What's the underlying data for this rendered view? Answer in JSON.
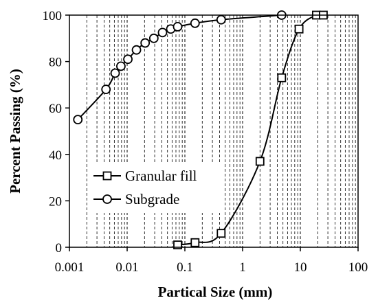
{
  "chart_data": {
    "type": "scatter",
    "xlabel": "Partical Size (mm)",
    "ylabel": "Percent Passing (%)",
    "x_scale": "log",
    "xlim": [
      0.001,
      100
    ],
    "ylim": [
      0,
      100
    ],
    "x_ticks": [
      "0.001",
      "0.01",
      "0.1",
      "1",
      "10",
      "100"
    ],
    "y_ticks": [
      "0",
      "20",
      "40",
      "60",
      "80",
      "100"
    ],
    "grid": "vertical dashed minor lines",
    "legend_position": "bottom-left",
    "series": [
      {
        "name": "Granular fill",
        "marker": "square",
        "x": [
          0.075,
          0.15,
          0.425,
          2.0,
          4.75,
          9.5,
          19.0,
          25.0
        ],
        "y": [
          1,
          2,
          6,
          37,
          73,
          94,
          100,
          100
        ]
      },
      {
        "name": "Subgrade",
        "marker": "circle",
        "x": [
          0.0014,
          0.0043,
          0.0062,
          0.0078,
          0.0103,
          0.0145,
          0.0205,
          0.029,
          0.041,
          0.057,
          0.075,
          0.15,
          0.425,
          4.75
        ],
        "y": [
          55,
          68,
          75,
          78,
          81,
          85,
          88,
          90,
          92.5,
          94,
          95,
          96.5,
          98,
          100
        ]
      }
    ]
  }
}
